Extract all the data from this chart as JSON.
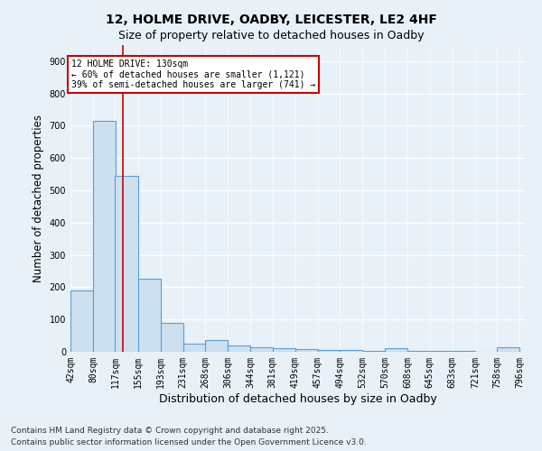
{
  "title1": "12, HOLME DRIVE, OADBY, LEICESTER, LE2 4HF",
  "title2": "Size of property relative to detached houses in Oadby",
  "xlabel": "Distribution of detached houses by size in Oadby",
  "ylabel": "Number of detached properties",
  "bar_left_edges": [
    42,
    80,
    117,
    155,
    193,
    231,
    268,
    306,
    344,
    381,
    419,
    457,
    494,
    532,
    570,
    608,
    645,
    683,
    721,
    758
  ],
  "bar_heights": [
    190,
    715,
    545,
    225,
    90,
    25,
    35,
    20,
    15,
    10,
    8,
    5,
    5,
    3,
    10,
    3,
    2,
    2,
    1,
    15
  ],
  "bin_width": 38,
  "bar_color": "#cce0f0",
  "bar_edge_color": "#5a9fd4",
  "tick_labels": [
    "42sqm",
    "80sqm",
    "117sqm",
    "155sqm",
    "193sqm",
    "231sqm",
    "268sqm",
    "306sqm",
    "344sqm",
    "381sqm",
    "419sqm",
    "457sqm",
    "494sqm",
    "532sqm",
    "570sqm",
    "608sqm",
    "645sqm",
    "683sqm",
    "721sqm",
    "758sqm",
    "796sqm"
  ],
  "ylim": [
    0,
    950
  ],
  "yticks": [
    0,
    100,
    200,
    300,
    400,
    500,
    600,
    700,
    800,
    900
  ],
  "red_line_x": 130,
  "annotation_text": "12 HOLME DRIVE: 130sqm\n← 60% of detached houses are smaller (1,121)\n39% of semi-detached houses are larger (741) →",
  "annotation_box_color": "#ffffff",
  "annotation_box_edge": "#cc0000",
  "footer1": "Contains HM Land Registry data © Crown copyright and database right 2025.",
  "footer2": "Contains public sector information licensed under the Open Government Licence v3.0.",
  "bg_color": "#e8f0f8",
  "plot_bg_color": "#e8f0f8",
  "grid_color": "#ffffff",
  "title1_fontsize": 10,
  "title2_fontsize": 9,
  "axis_label_fontsize": 8.5,
  "tick_fontsize": 7,
  "footer_fontsize": 6.5
}
